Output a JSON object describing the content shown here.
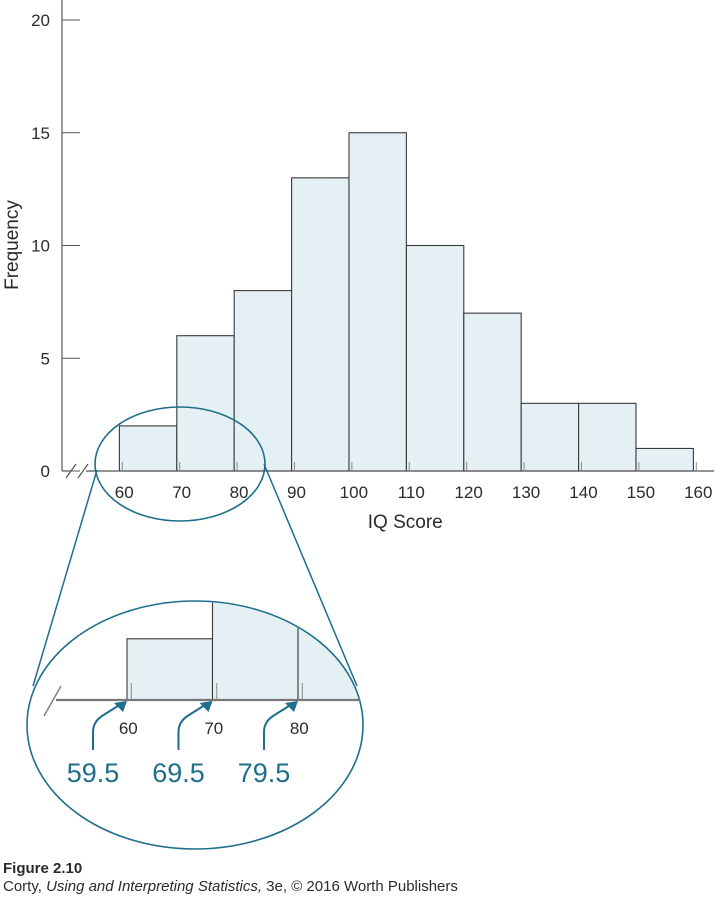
{
  "chart_data": {
    "type": "bar",
    "xlabel": "IQ Score",
    "ylabel": "Frequency",
    "ylim": [
      0,
      20
    ],
    "yticks": [
      0,
      5,
      10,
      15,
      20
    ],
    "xticks": [
      60,
      70,
      80,
      90,
      100,
      110,
      120,
      130,
      140,
      150,
      160
    ],
    "bin_edges": [
      59.5,
      69.5,
      79.5,
      89.5,
      99.5,
      109.5,
      119.5,
      129.5,
      139.5,
      149.5,
      159.5
    ],
    "values": [
      2,
      6,
      8,
      13,
      15,
      10,
      7,
      3,
      3,
      1
    ],
    "grid": false,
    "inset": {
      "xticks": [
        60,
        70,
        80
      ],
      "callouts": [
        "59.5",
        "69.5",
        "79.5"
      ]
    }
  },
  "caption": {
    "figure_number": "Figure 2.10",
    "credit_prefix": "Corty, ",
    "credit_title": "Using and Interpreting Statistics,",
    "credit_suffix": " 3e, © 2016 Worth Publishers"
  },
  "colors": {
    "bar_fill": "#e4f0f4",
    "bar_stroke": "#3a3a3a",
    "accent": "#1e6e8c",
    "axis": "#555555",
    "text": "#2b2b2b"
  }
}
